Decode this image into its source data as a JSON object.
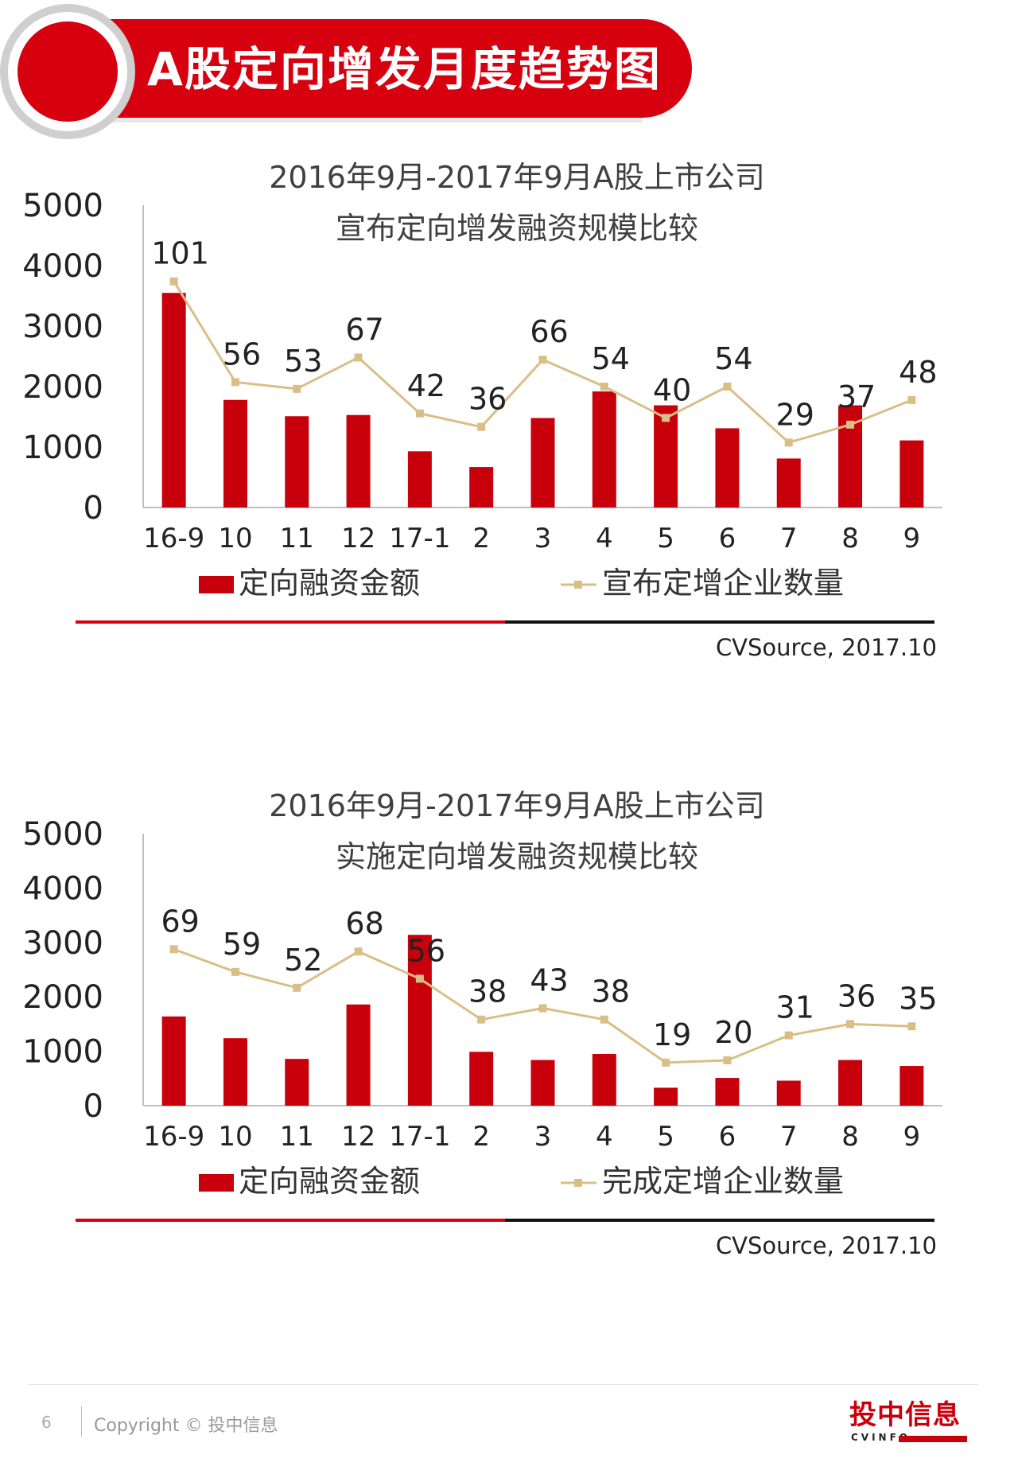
{
  "header": {
    "title": "A股定向增发月度趋势图"
  },
  "colors": {
    "bar": "#c8000b",
    "line": "#d9bf86",
    "accent": "#d7000f"
  },
  "chart_data": [
    {
      "type": "bar+line",
      "title": "2016年9月-2017年9月A股上市公司",
      "subtitle": "宣布定向增发融资规模比较",
      "categories": [
        "16-9",
        "10",
        "11",
        "12",
        "17-1",
        "2",
        "3",
        "4",
        "5",
        "6",
        "7",
        "8",
        "9"
      ],
      "y_ticks": [
        "5000",
        "4000",
        "3000",
        "2000",
        "1000",
        "0"
      ],
      "ylim": [
        0,
        5000
      ],
      "line_ylim": [
        0,
        135
      ],
      "series": [
        {
          "name": "定向融资金额",
          "kind": "bar",
          "values": [
            3550,
            1780,
            1510,
            1530,
            930,
            670,
            1480,
            1920,
            1690,
            1310,
            810,
            1690,
            1110
          ]
        },
        {
          "name": "宣布定增企业数量",
          "kind": "line",
          "values": [
            101,
            56,
            53,
            67,
            42,
            36,
            66,
            54,
            40,
            54,
            29,
            37,
            48
          ]
        }
      ],
      "source": "CVSource, 2017.10"
    },
    {
      "type": "bar+line",
      "title": "2016年9月-2017年9月A股上市公司",
      "subtitle": "实施定向增发融资规模比较",
      "categories": [
        "16-9",
        "10",
        "11",
        "12",
        "17-1",
        "2",
        "3",
        "4",
        "5",
        "6",
        "7",
        "8",
        "9"
      ],
      "y_ticks": [
        "5000",
        "4000",
        "3000",
        "2000",
        "1000",
        "0"
      ],
      "ylim": [
        0,
        5000
      ],
      "line_ylim": [
        0,
        120
      ],
      "series": [
        {
          "name": "定向融资金额",
          "kind": "bar",
          "values": [
            1640,
            1240,
            860,
            1860,
            3140,
            990,
            840,
            950,
            330,
            510,
            460,
            840,
            730
          ]
        },
        {
          "name": "完成定增企业数量",
          "kind": "line",
          "values": [
            69,
            59,
            52,
            68,
            56,
            38,
            43,
            38,
            19,
            20,
            31,
            36,
            35
          ]
        }
      ],
      "source": "CVSource, 2017.10"
    }
  ],
  "footer": {
    "page_number": "6",
    "copyright": "Copyright © 投中信息",
    "brand_cn": "投中信息",
    "brand_en": "CVINFO"
  }
}
